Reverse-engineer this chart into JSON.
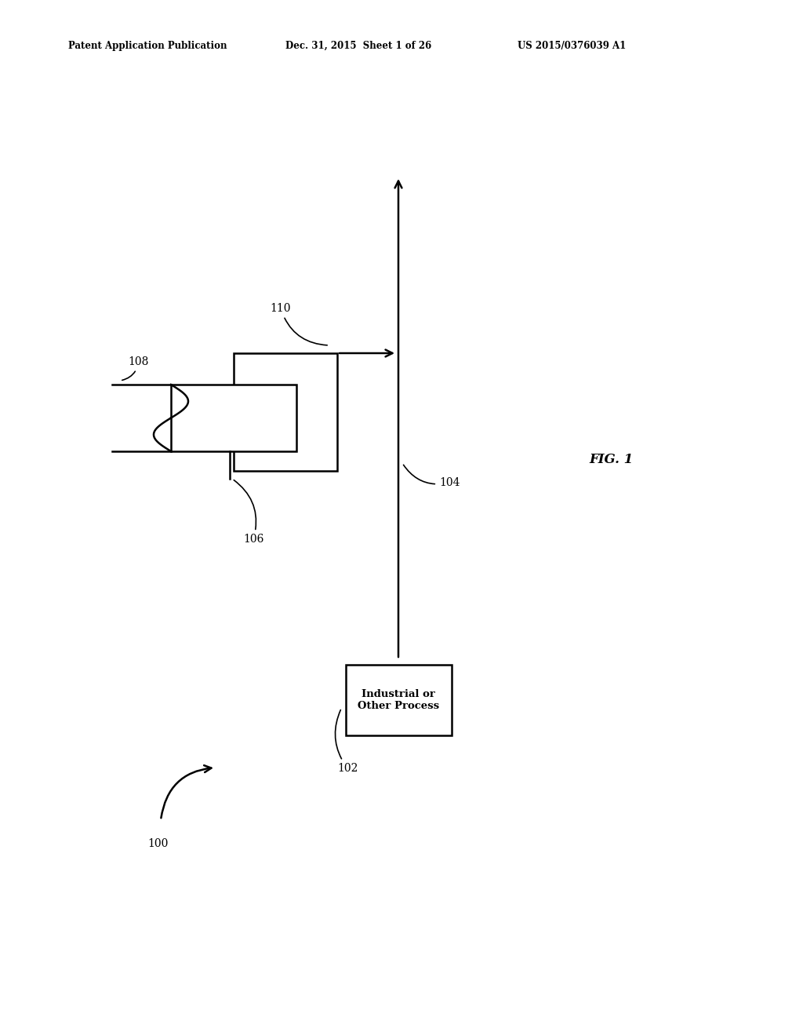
{
  "bg_color": "#ffffff",
  "line_color": "#000000",
  "header_left": "Patent Application Publication",
  "header_mid": "Dec. 31, 2015  Sheet 1 of 26",
  "header_right": "US 2015/0376039 A1",
  "fig_label": "FIG. 1",
  "box_102_label": "Industrial or\nOther Process",
  "figsize": [
    10.24,
    13.2
  ],
  "dpi": 100
}
